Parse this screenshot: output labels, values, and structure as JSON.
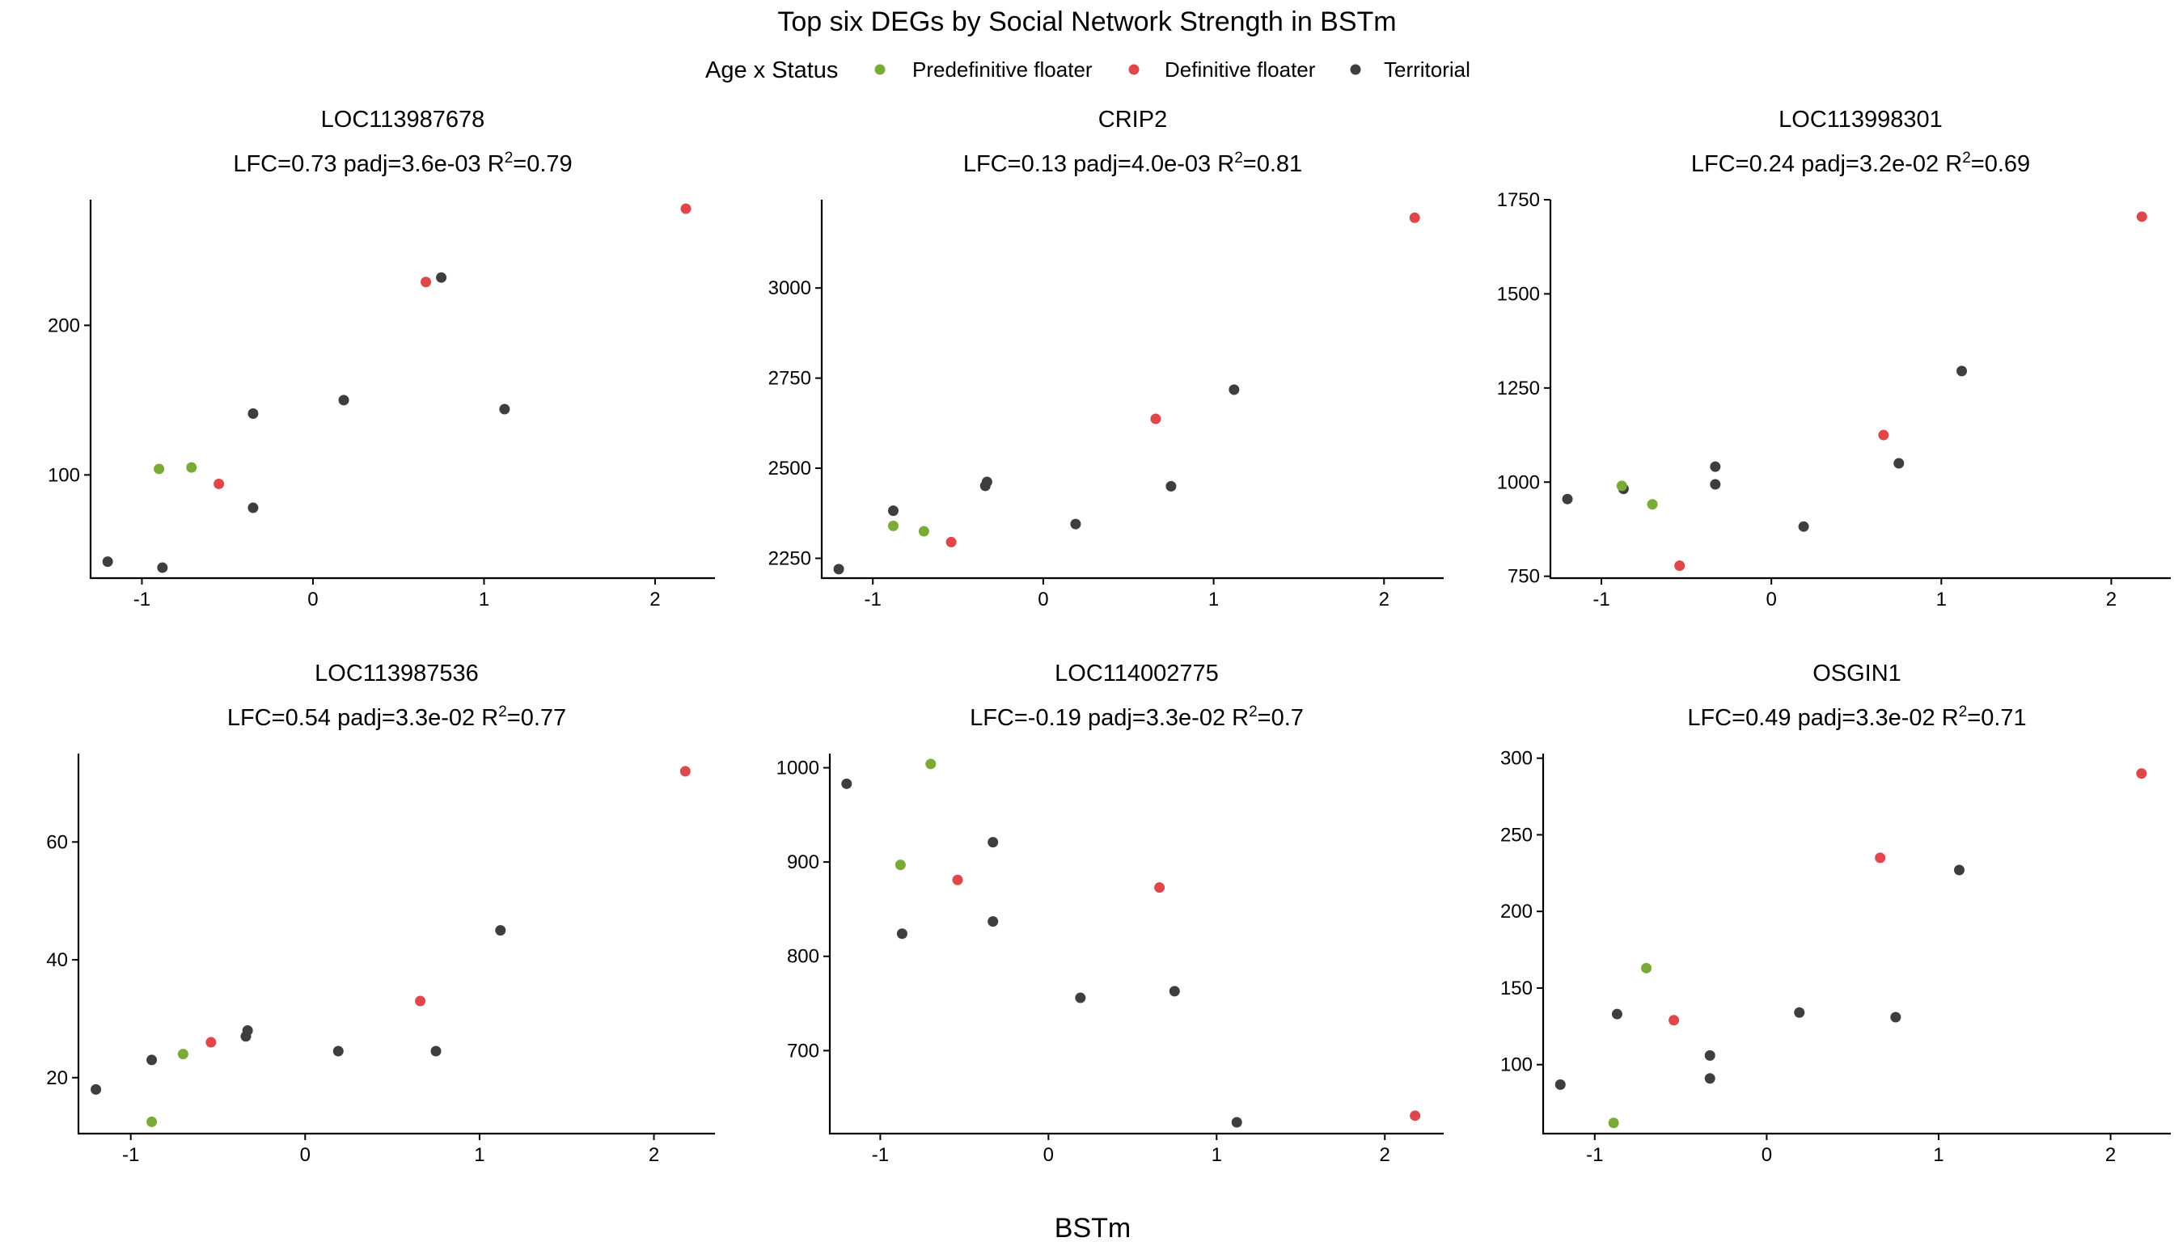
{
  "figure": {
    "title": "Top six DEGs by Social Network Strength in BSTm",
    "xlabel": "BSTm"
  },
  "legend": {
    "title": "Age x Status",
    "items": [
      {
        "label": "Predefinitive floater",
        "color": "#7bab37"
      },
      {
        "label": "Definitive floater",
        "color": "#e0474c"
      },
      {
        "label": "Territorial",
        "color": "#3e3e3e"
      }
    ]
  },
  "chart_data": [
    {
      "type": "scatter",
      "title": "LOC113987678",
      "stats": {
        "prefix": "LFC=0.73 padj=3.6e-03 R",
        "sup": "2",
        "suffix": "=0.79"
      },
      "xlim": [
        -1.3,
        2.35
      ],
      "ylim": [
        31,
        284
      ],
      "xticks": [
        -1,
        0,
        1,
        2
      ],
      "yticks": [
        100,
        200
      ],
      "points": [
        {
          "x": -1.2,
          "y": 42,
          "group": "Territorial"
        },
        {
          "x": -0.88,
          "y": 38,
          "group": "Territorial"
        },
        {
          "x": -0.9,
          "y": 104,
          "group": "Predefinitive floater"
        },
        {
          "x": -0.71,
          "y": 105,
          "group": "Predefinitive floater"
        },
        {
          "x": -0.55,
          "y": 94,
          "group": "Definitive floater"
        },
        {
          "x": -0.35,
          "y": 141,
          "group": "Territorial"
        },
        {
          "x": -0.35,
          "y": 78,
          "group": "Territorial"
        },
        {
          "x": 0.18,
          "y": 150,
          "group": "Territorial"
        },
        {
          "x": 0.66,
          "y": 229,
          "group": "Definitive floater"
        },
        {
          "x": 0.75,
          "y": 232,
          "group": "Territorial"
        },
        {
          "x": 1.12,
          "y": 144,
          "group": "Territorial"
        },
        {
          "x": 2.18,
          "y": 278,
          "group": "Definitive floater"
        }
      ]
    },
    {
      "type": "scatter",
      "title": "CRIP2",
      "stats": {
        "prefix": "LFC=0.13 padj=4.0e-03 R",
        "sup": "2",
        "suffix": "=0.81"
      },
      "xlim": [
        -1.3,
        2.35
      ],
      "ylim": [
        2195,
        3245
      ],
      "xticks": [
        -1,
        0,
        1,
        2
      ],
      "yticks": [
        2250,
        2500,
        2750,
        3000
      ],
      "points": [
        {
          "x": -1.2,
          "y": 2220,
          "group": "Territorial"
        },
        {
          "x": -0.88,
          "y": 2382,
          "group": "Territorial"
        },
        {
          "x": -0.88,
          "y": 2340,
          "group": "Predefinitive floater"
        },
        {
          "x": -0.7,
          "y": 2325,
          "group": "Predefinitive floater"
        },
        {
          "x": -0.54,
          "y": 2295,
          "group": "Definitive floater"
        },
        {
          "x": -0.34,
          "y": 2451,
          "group": "Territorial"
        },
        {
          "x": -0.33,
          "y": 2462,
          "group": "Territorial"
        },
        {
          "x": 0.19,
          "y": 2345,
          "group": "Territorial"
        },
        {
          "x": 0.66,
          "y": 2637,
          "group": "Definitive floater"
        },
        {
          "x": 0.75,
          "y": 2450,
          "group": "Territorial"
        },
        {
          "x": 1.12,
          "y": 2718,
          "group": "Territorial"
        },
        {
          "x": 2.18,
          "y": 3195,
          "group": "Definitive floater"
        }
      ]
    },
    {
      "type": "scatter",
      "title": "LOC113998301",
      "stats": {
        "prefix": "LFC=0.24 padj=3.2e-02 R",
        "sup": "2",
        "suffix": "=0.69"
      },
      "xlim": [
        -1.3,
        2.35
      ],
      "ylim": [
        745,
        1750
      ],
      "xticks": [
        -1,
        0,
        1,
        2
      ],
      "yticks": [
        750,
        1000,
        1250,
        1500,
        1750
      ],
      "points": [
        {
          "x": -1.2,
          "y": 955,
          "group": "Territorial"
        },
        {
          "x": -0.87,
          "y": 982,
          "group": "Territorial"
        },
        {
          "x": -0.88,
          "y": 990,
          "group": "Predefinitive floater"
        },
        {
          "x": -0.7,
          "y": 941,
          "group": "Predefinitive floater"
        },
        {
          "x": -0.54,
          "y": 778,
          "group": "Definitive floater"
        },
        {
          "x": -0.33,
          "y": 1041,
          "group": "Territorial"
        },
        {
          "x": -0.33,
          "y": 994,
          "group": "Territorial"
        },
        {
          "x": 0.19,
          "y": 882,
          "group": "Territorial"
        },
        {
          "x": 0.66,
          "y": 1125,
          "group": "Definitive floater"
        },
        {
          "x": 0.75,
          "y": 1050,
          "group": "Territorial"
        },
        {
          "x": 1.12,
          "y": 1295,
          "group": "Territorial"
        },
        {
          "x": 2.18,
          "y": 1705,
          "group": "Definitive floater"
        }
      ]
    },
    {
      "type": "scatter",
      "title": "LOC113987536",
      "stats": {
        "prefix": "LFC=0.54 padj=3.3e-02 R",
        "sup": "2",
        "suffix": "=0.77"
      },
      "xlim": [
        -1.3,
        2.35
      ],
      "ylim": [
        10.5,
        75
      ],
      "xticks": [
        -1,
        0,
        1,
        2
      ],
      "yticks": [
        20,
        40,
        60
      ],
      "points": [
        {
          "x": -1.2,
          "y": 18,
          "group": "Territorial"
        },
        {
          "x": -0.88,
          "y": 23,
          "group": "Territorial"
        },
        {
          "x": -0.88,
          "y": 12.5,
          "group": "Predefinitive floater"
        },
        {
          "x": -0.7,
          "y": 24,
          "group": "Predefinitive floater"
        },
        {
          "x": -0.54,
          "y": 26,
          "group": "Definitive floater"
        },
        {
          "x": -0.34,
          "y": 27,
          "group": "Territorial"
        },
        {
          "x": -0.33,
          "y": 28,
          "group": "Territorial"
        },
        {
          "x": 0.19,
          "y": 24.5,
          "group": "Territorial"
        },
        {
          "x": 0.66,
          "y": 33,
          "group": "Definitive floater"
        },
        {
          "x": 0.75,
          "y": 24.5,
          "group": "Territorial"
        },
        {
          "x": 1.12,
          "y": 45,
          "group": "Territorial"
        },
        {
          "x": 2.18,
          "y": 72,
          "group": "Definitive floater"
        }
      ]
    },
    {
      "type": "scatter",
      "title": "LOC114002775",
      "stats": {
        "prefix": "LFC=-0.19 padj=3.3e-02 R",
        "sup": "2",
        "suffix": "=0.7"
      },
      "xlim": [
        -1.3,
        2.35
      ],
      "ylim": [
        612,
        1015
      ],
      "xticks": [
        -1,
        0,
        1,
        2
      ],
      "yticks": [
        700,
        800,
        900,
        1000
      ],
      "points": [
        {
          "x": -1.2,
          "y": 983,
          "group": "Territorial"
        },
        {
          "x": -0.87,
          "y": 824,
          "group": "Territorial"
        },
        {
          "x": -0.88,
          "y": 897,
          "group": "Predefinitive floater"
        },
        {
          "x": -0.7,
          "y": 1004,
          "group": "Predefinitive floater"
        },
        {
          "x": -0.54,
          "y": 881,
          "group": "Definitive floater"
        },
        {
          "x": -0.33,
          "y": 921,
          "group": "Territorial"
        },
        {
          "x": -0.33,
          "y": 837,
          "group": "Territorial"
        },
        {
          "x": 0.19,
          "y": 756,
          "group": "Territorial"
        },
        {
          "x": 0.66,
          "y": 873,
          "group": "Definitive floater"
        },
        {
          "x": 0.75,
          "y": 763,
          "group": "Territorial"
        },
        {
          "x": 1.12,
          "y": 624,
          "group": "Territorial"
        },
        {
          "x": 2.18,
          "y": 631,
          "group": "Definitive floater"
        }
      ]
    },
    {
      "type": "scatter",
      "title": "OSGIN1",
      "stats": {
        "prefix": "LFC=0.49 padj=3.3e-02 R",
        "sup": "2",
        "suffix": "=0.71"
      },
      "xlim": [
        -1.3,
        2.35
      ],
      "ylim": [
        55,
        303
      ],
      "xticks": [
        -1,
        0,
        1,
        2
      ],
      "yticks": [
        100,
        150,
        200,
        250,
        300
      ],
      "points": [
        {
          "x": -1.2,
          "y": 87,
          "group": "Territorial"
        },
        {
          "x": -0.87,
          "y": 133,
          "group": "Territorial"
        },
        {
          "x": -0.89,
          "y": 62,
          "group": "Predefinitive floater"
        },
        {
          "x": -0.7,
          "y": 163,
          "group": "Predefinitive floater"
        },
        {
          "x": -0.54,
          "y": 129,
          "group": "Definitive floater"
        },
        {
          "x": -0.33,
          "y": 106,
          "group": "Territorial"
        },
        {
          "x": -0.33,
          "y": 91,
          "group": "Territorial"
        },
        {
          "x": 0.19,
          "y": 134,
          "group": "Territorial"
        },
        {
          "x": 0.66,
          "y": 235,
          "group": "Definitive floater"
        },
        {
          "x": 0.75,
          "y": 131,
          "group": "Territorial"
        },
        {
          "x": 1.12,
          "y": 227,
          "group": "Territorial"
        },
        {
          "x": 2.18,
          "y": 290,
          "group": "Definitive floater"
        }
      ]
    }
  ]
}
